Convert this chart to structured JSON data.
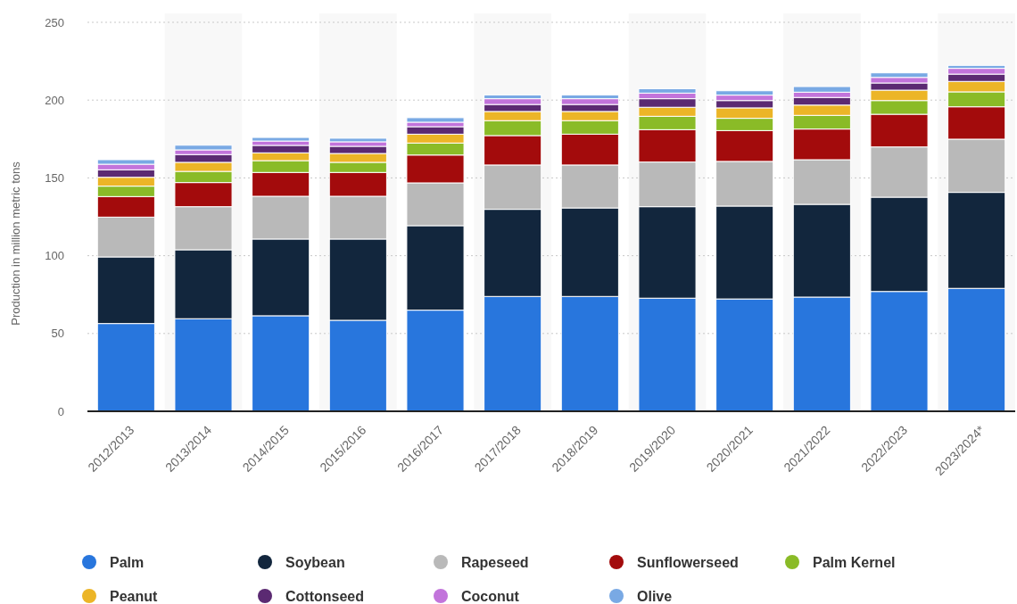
{
  "chart_data": {
    "type": "bar",
    "stacked": true,
    "ylabel": "Production in million metric tons",
    "categories": [
      "2012/2013",
      "2013/2014",
      "2014/2015",
      "2015/2016",
      "2016/2017",
      "2017/2018",
      "2018/2019",
      "2019/2020",
      "2020/2021",
      "2021/2022",
      "2022/2023",
      "2023/2024*"
    ],
    "bands": [
      {
        "axis": "x",
        "from": "2013/2014",
        "to": "2013/2014",
        "color": "#f8f8f8"
      },
      {
        "axis": "x",
        "from": "2015/2016",
        "to": "2015/2016",
        "color": "#f8f8f8"
      },
      {
        "axis": "x",
        "from": "2017/2018",
        "to": "2017/2018",
        "color": "#f8f8f8"
      },
      {
        "axis": "x",
        "from": "2019/2020",
        "to": "2019/2020",
        "color": "#f8f8f8"
      },
      {
        "axis": "x",
        "from": "2021/2022",
        "to": "2021/2022",
        "color": "#f8f8f8"
      },
      {
        "axis": "x",
        "from": "2023/2024*",
        "to": "2023/2024*",
        "color": "#f8f8f8"
      }
    ],
    "ylim": [
      0,
      250
    ],
    "yticks": [
      0,
      50,
      100,
      150,
      200,
      250
    ],
    "grid": "y",
    "legend": "bottom",
    "series": [
      {
        "name": "Palm",
        "color": "#2876dd",
        "values": [
          56.4,
          59.5,
          61.4,
          58.5,
          65.0,
          73.8,
          73.8,
          72.7,
          72.2,
          73.4,
          77.0,
          79.0
        ]
      },
      {
        "name": "Soybean",
        "color": "#12263d",
        "values": [
          42.8,
          44.3,
          49.3,
          52.2,
          54.3,
          56.0,
          56.9,
          58.8,
          59.7,
          59.6,
          60.6,
          61.7
        ]
      },
      {
        "name": "Rapeseed",
        "color": "#b9b9b9",
        "values": [
          25.6,
          27.7,
          27.5,
          27.5,
          27.5,
          28.5,
          27.6,
          28.7,
          28.7,
          28.7,
          32.3,
          34.2
        ]
      },
      {
        "name": "Sunflowerseed",
        "color": "#a30b0c",
        "values": [
          13.2,
          15.5,
          15.3,
          15.3,
          17.9,
          18.9,
          19.8,
          20.8,
          19.8,
          19.7,
          21.0,
          20.8
        ]
      },
      {
        "name": "Palm Kernel",
        "color": "#8abb27",
        "values": [
          6.7,
          7.2,
          7.6,
          6.5,
          7.7,
          9.6,
          8.7,
          8.6,
          7.9,
          8.8,
          8.8,
          9.6
        ]
      },
      {
        "name": "Peanut",
        "color": "#ecb527",
        "values": [
          5.7,
          5.8,
          5.0,
          5.7,
          5.7,
          5.9,
          5.9,
          5.8,
          6.7,
          6.6,
          6.7,
          6.7
        ]
      },
      {
        "name": "Cottonseed",
        "color": "#5b2a72",
        "values": [
          4.8,
          5.0,
          4.8,
          4.6,
          4.8,
          4.5,
          4.5,
          5.5,
          4.7,
          4.9,
          4.6,
          4.7
        ]
      },
      {
        "name": "Coconut",
        "color": "#c274db",
        "values": [
          3.6,
          3.0,
          2.8,
          2.9,
          2.9,
          3.7,
          3.7,
          3.6,
          3.5,
          3.4,
          3.6,
          3.7
        ]
      },
      {
        "name": "Olive",
        "color": "#79a9e4",
        "values": [
          2.9,
          3.0,
          2.3,
          2.3,
          2.9,
          2.4,
          2.4,
          2.8,
          2.8,
          3.6,
          2.9,
          1.9
        ]
      }
    ]
  }
}
